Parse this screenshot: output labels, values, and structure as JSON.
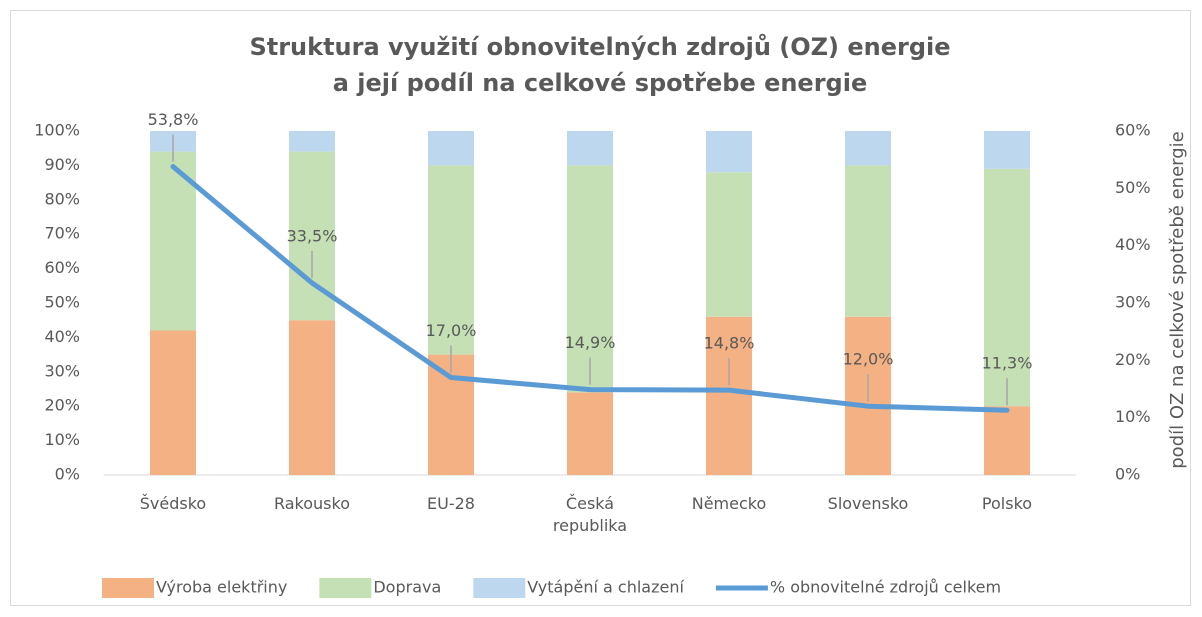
{
  "chart_data": {
    "type": "stacked_bar_line",
    "title": [
      "Struktura využití obnovitelných zdrojů (OZ) energie",
      "a její podíl na celkové spotřebe energie"
    ],
    "y2_label": "podíl OZ na celkové spotřebě energie",
    "categories": [
      "Švédsko",
      "Rakousko",
      "EU-28",
      "Česká republika",
      "Německo",
      "Slovensko",
      "Polsko"
    ],
    "series": [
      {
        "name": "Výroba elektřiny",
        "color": "#f4b183",
        "values": [
          42,
          45,
          35,
          24,
          46,
          46,
          20
        ]
      },
      {
        "name": "Doprava",
        "color": "#c5e0b4",
        "values": [
          52,
          49,
          55,
          66,
          42,
          44,
          69
        ]
      },
      {
        "name": "Vytápění a chlazení",
        "color": "#bdd7ee",
        "values": [
          6,
          6,
          10,
          10,
          12,
          10,
          11
        ]
      },
      {
        "name": "% obnovitelné zdrojů celkem",
        "color": "#5b9bd5",
        "axis": "y2",
        "values": [
          53.8,
          33.5,
          17.0,
          14.9,
          14.8,
          12.0,
          11.3
        ],
        "value_labels": [
          "53,8%",
          "33,5%",
          "17,0%",
          "14,9%",
          "14,8%",
          "12,0%",
          "11,3%"
        ]
      }
    ],
    "ylim": [
      0,
      100
    ],
    "yticks": [
      {
        "value": 0,
        "label": "0%"
      },
      {
        "value": 10,
        "label": "10%"
      },
      {
        "value": 20,
        "label": "20%"
      },
      {
        "value": 30,
        "label": "30%"
      },
      {
        "value": 40,
        "label": "40%"
      },
      {
        "value": 50,
        "label": "50%"
      },
      {
        "value": 60,
        "label": "60%"
      },
      {
        "value": 70,
        "label": "70%"
      },
      {
        "value": 80,
        "label": "80%"
      },
      {
        "value": 90,
        "label": "90%"
      },
      {
        "value": 100,
        "label": "100%"
      }
    ],
    "y2lim": [
      0,
      60
    ],
    "y2ticks": [
      {
        "value": 0,
        "label": "0%"
      },
      {
        "value": 10,
        "label": "10%"
      },
      {
        "value": 20,
        "label": "20%"
      },
      {
        "value": 30,
        "label": "30%"
      },
      {
        "value": 40,
        "label": "40%"
      },
      {
        "value": 50,
        "label": "50%"
      },
      {
        "value": 60,
        "label": "60%"
      }
    ],
    "legend": "bottom"
  }
}
